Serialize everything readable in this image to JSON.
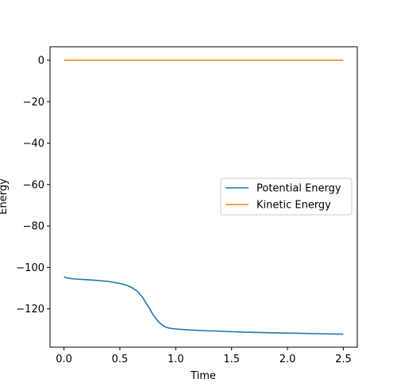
{
  "chart_data": {
    "type": "line",
    "title": "",
    "xlabel": "Time",
    "ylabel": "Energy",
    "xlim": [
      -0.125,
      2.625
    ],
    "ylim": [
      -138.5,
      6.5
    ],
    "xticks": [
      0.0,
      0.5,
      1.0,
      1.5,
      2.0,
      2.5
    ],
    "xtick_labels": [
      "0.0",
      "0.5",
      "1.0",
      "1.5",
      "2.0",
      "2.5"
    ],
    "yticks": [
      0,
      -20,
      -40,
      -60,
      -80,
      -100,
      -120
    ],
    "ytick_labels": [
      "0",
      "−20",
      "−40",
      "−60",
      "−80",
      "−100",
      "−120"
    ],
    "grid": false,
    "legend_position": "center-right",
    "series": [
      {
        "name": "Potential Energy",
        "color": "#1f77b4",
        "x": [
          0.0,
          0.02,
          0.05,
          0.1,
          0.2,
          0.3,
          0.4,
          0.5,
          0.55,
          0.6,
          0.65,
          0.7,
          0.75,
          0.8,
          0.85,
          0.9,
          0.95,
          1.0,
          1.1,
          1.2,
          1.4,
          1.6,
          1.8,
          2.0,
          2.2,
          2.4,
          2.5
        ],
        "y": [
          -104.5,
          -105.0,
          -105.3,
          -105.6,
          -105.9,
          -106.3,
          -106.8,
          -107.7,
          -108.4,
          -109.5,
          -111.2,
          -114.2,
          -118.5,
          -123.0,
          -126.5,
          -128.6,
          -129.4,
          -129.7,
          -130.1,
          -130.4,
          -130.8,
          -131.2,
          -131.5,
          -131.7,
          -131.9,
          -132.1,
          -132.2
        ]
      },
      {
        "name": "Kinetic Energy",
        "color": "#ff7f0e",
        "x": [
          0.0,
          0.5,
          1.0,
          1.5,
          2.0,
          2.5
        ],
        "y": [
          0,
          0,
          0,
          0,
          0,
          0
        ]
      }
    ]
  }
}
